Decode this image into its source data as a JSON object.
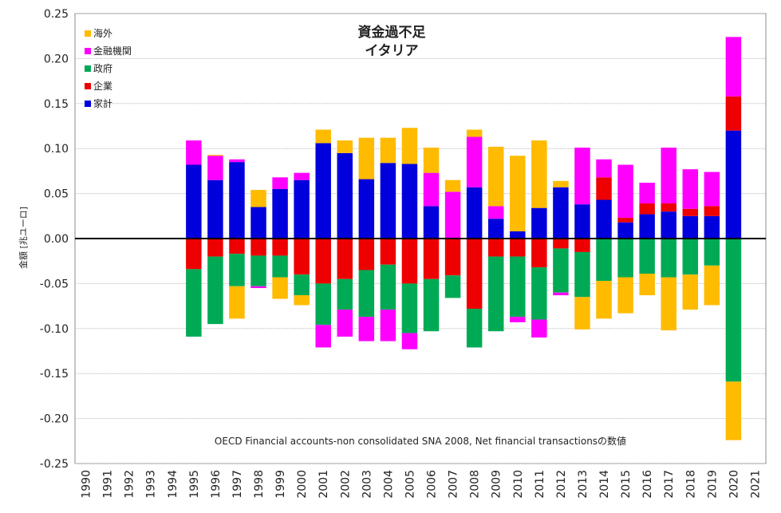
{
  "chart_data": {
    "type": "bar",
    "stacked": true,
    "title": "資金過不足",
    "subtitle": "イタリア",
    "ylabel": "金額 [兆ユーロ]",
    "xlabel": "",
    "annotation": "OECD Financial accounts-non consolidated SNA 2008, Net financial transactionsの数値",
    "ylim": [
      -0.25,
      0.25
    ],
    "yticks": [
      "0.25",
      "0.20",
      "0.15",
      "0.10",
      "0.05",
      "0.00",
      "-0.05",
      "-0.10",
      "-0.15",
      "-0.20",
      "-0.25"
    ],
    "grid": true,
    "legend_position": "top-left",
    "categories": [
      "1990",
      "1991",
      "1992",
      "1993",
      "1994",
      "1995",
      "1996",
      "1997",
      "1998",
      "1999",
      "2000",
      "2001",
      "2002",
      "2003",
      "2004",
      "2005",
      "2006",
      "2007",
      "2008",
      "2009",
      "2010",
      "2011",
      "2012",
      "2013",
      "2014",
      "2015",
      "2016",
      "2017",
      "2018",
      "2019",
      "2020",
      "2021"
    ],
    "series": [
      {
        "name": "家計",
        "color": "#0000dd",
        "values": [
          null,
          null,
          null,
          null,
          null,
          0.082,
          0.065,
          0.085,
          0.035,
          0.055,
          0.065,
          0.106,
          0.095,
          0.066,
          0.084,
          0.083,
          0.036,
          0,
          0.057,
          0.022,
          0.008,
          0.034,
          0.057,
          0.038,
          0.043,
          0.018,
          0.027,
          0.03,
          0.025,
          0.025,
          0.12,
          null
        ]
      },
      {
        "name": "企業",
        "color": "#ee0000",
        "values": [
          null,
          null,
          null,
          null,
          null,
          -0.034,
          -0.02,
          -0.017,
          -0.019,
          -0.019,
          -0.04,
          -0.05,
          -0.045,
          -0.035,
          -0.029,
          -0.05,
          -0.045,
          -0.041,
          -0.078,
          -0.02,
          -0.02,
          -0.032,
          -0.011,
          -0.015,
          0.025,
          0.005,
          0.012,
          0.009,
          0.008,
          0.011,
          0.038,
          null
        ]
      },
      {
        "name": "政府",
        "color": "#00aa55",
        "values": [
          null,
          null,
          null,
          null,
          null,
          -0.075,
          -0.075,
          -0.036,
          -0.034,
          -0.024,
          -0.023,
          -0.046,
          -0.034,
          -0.052,
          -0.05,
          -0.055,
          -0.058,
          -0.025,
          -0.043,
          -0.083,
          -0.067,
          -0.058,
          -0.049,
          -0.05,
          -0.047,
          -0.043,
          -0.039,
          -0.043,
          -0.04,
          -0.03,
          -0.159,
          null
        ]
      },
      {
        "name": "金融機関",
        "color": "#ff00ff",
        "values": [
          null,
          null,
          null,
          null,
          null,
          0.027,
          0.027,
          0.003,
          -0.002,
          0.013,
          0.008,
          -0.025,
          -0.03,
          -0.027,
          -0.035,
          -0.018,
          0.037,
          0.052,
          0.056,
          0.014,
          -0.006,
          -0.02,
          -0.003,
          0.063,
          0.02,
          0.059,
          0.023,
          0.062,
          0.044,
          0.038,
          0.066,
          null
        ]
      },
      {
        "name": "海外",
        "color": "#ffbb00",
        "values": [
          null,
          null,
          null,
          null,
          null,
          0,
          0.001,
          -0.036,
          0.019,
          -0.024,
          -0.011,
          0.015,
          0.014,
          0.046,
          0.028,
          0.04,
          0.028,
          0.013,
          0.008,
          0.066,
          0.084,
          0.075,
          0.007,
          -0.036,
          -0.042,
          -0.04,
          -0.024,
          -0.059,
          -0.039,
          -0.044,
          -0.065,
          null
        ]
      }
    ]
  }
}
